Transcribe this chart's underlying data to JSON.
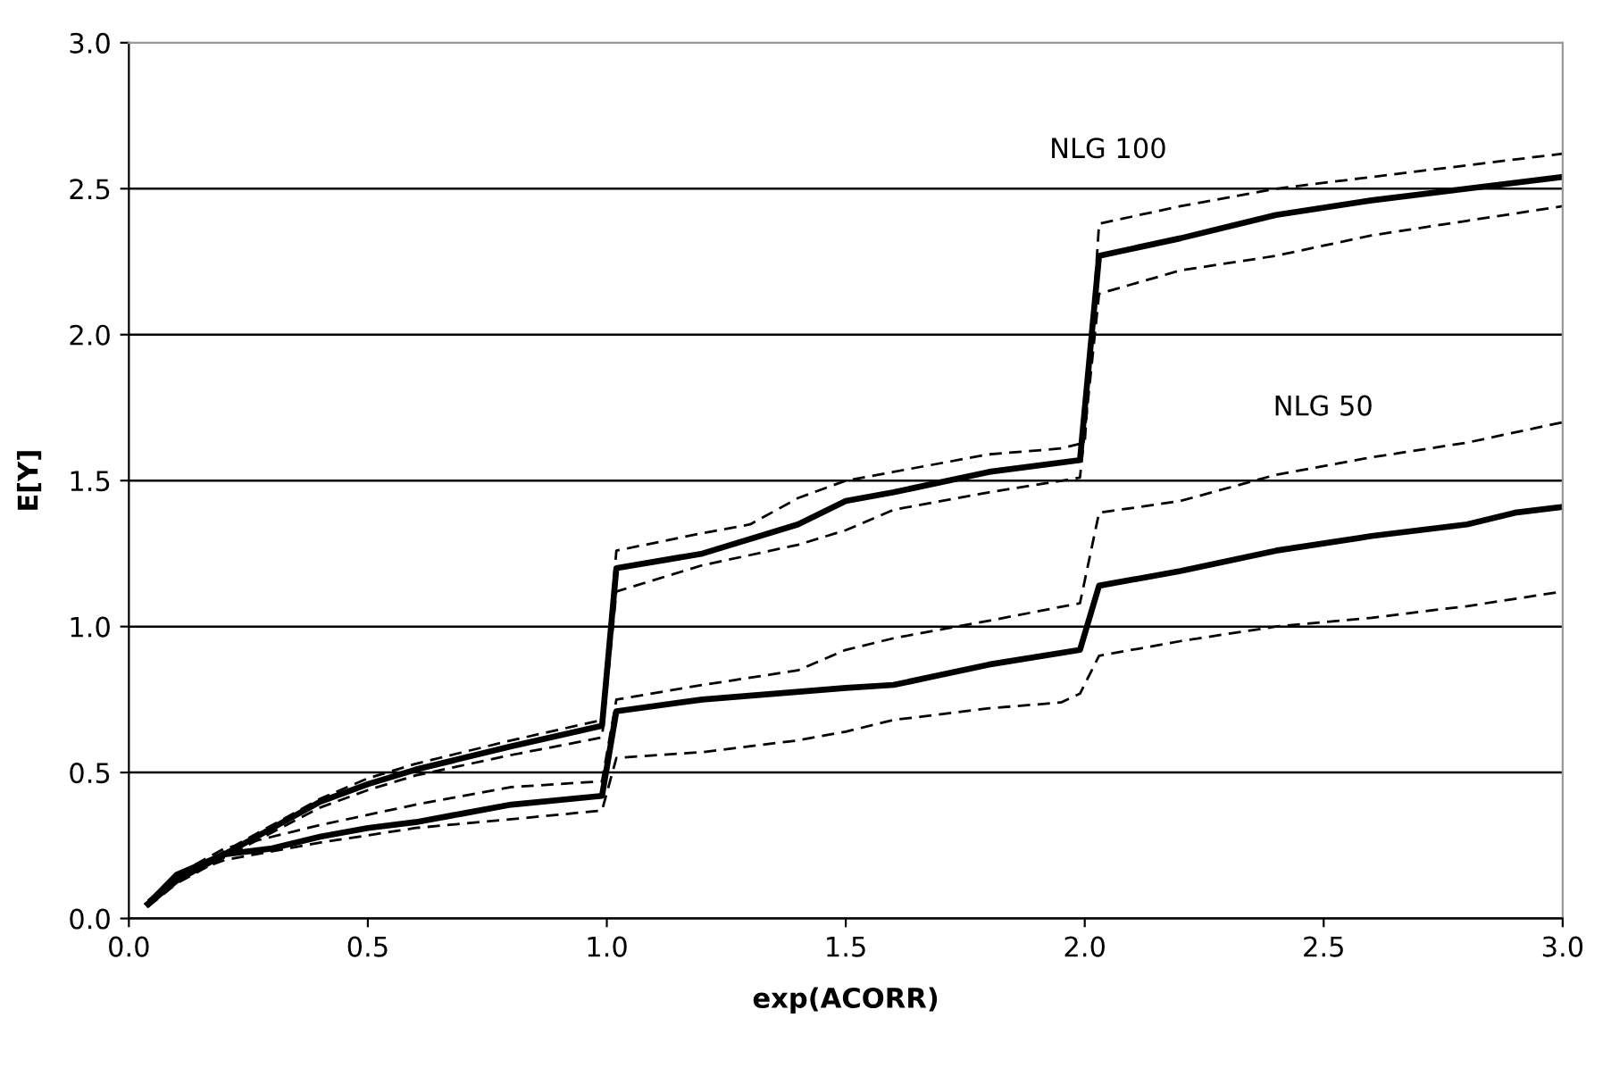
{
  "chart_data": {
    "type": "line",
    "xlabel": "exp(ACORR)",
    "ylabel": "E[Y]",
    "xlim": [
      0,
      3
    ],
    "ylim": [
      0,
      3
    ],
    "xticks": [
      {
        "value": 0,
        "label": "0.0"
      },
      {
        "value": 0.5,
        "label": "0.5"
      },
      {
        "value": 1,
        "label": "1.0"
      },
      {
        "value": 1.5,
        "label": "1.5"
      },
      {
        "value": 2,
        "label": "2.0"
      },
      {
        "value": 2.5,
        "label": "2.5"
      },
      {
        "value": 3,
        "label": "3.0"
      }
    ],
    "yticks": [
      {
        "value": 0,
        "label": "0.0"
      },
      {
        "value": 0.5,
        "label": "0.5"
      },
      {
        "value": 1,
        "label": "1.0"
      },
      {
        "value": 1.5,
        "label": "1.5"
      },
      {
        "value": 2,
        "label": "2.0"
      },
      {
        "value": 2.5,
        "label": "2.5"
      },
      {
        "value": 3,
        "label": "3.0"
      }
    ],
    "grid": "y",
    "marker": "none",
    "annotations": [
      "NLG 100",
      "NLG 50"
    ],
    "series": [
      {
        "color": "#000000",
        "line_style": "solid",
        "x": [
          0.04,
          0.1,
          0.2,
          0.4,
          0.5,
          0.6,
          0.8,
          0.99,
          1.02,
          1.2,
          1.4,
          1.5,
          1.6,
          1.8,
          1.99,
          2.03,
          2.2,
          2.4,
          2.6,
          2.8,
          3.0
        ],
        "values": [
          0.05,
          0.13,
          0.22,
          0.4,
          0.46,
          0.51,
          0.59,
          0.66,
          1.2,
          1.25,
          1.35,
          1.43,
          1.46,
          1.53,
          1.57,
          2.27,
          2.33,
          2.41,
          2.46,
          2.5,
          2.54
        ]
      },
      {
        "color": "#000000",
        "line_style": "dashed",
        "x": [
          0.04,
          0.1,
          0.2,
          0.4,
          0.5,
          0.6,
          0.8,
          0.99,
          1.02,
          1.2,
          1.3,
          1.4,
          1.5,
          1.6,
          1.8,
          1.95,
          2.0,
          2.03,
          2.2,
          2.4,
          2.6,
          2.8,
          3.0
        ],
        "values": [
          0.06,
          0.14,
          0.23,
          0.41,
          0.48,
          0.53,
          0.61,
          0.68,
          1.26,
          1.32,
          1.35,
          1.44,
          1.5,
          1.53,
          1.59,
          1.61,
          1.63,
          2.38,
          2.44,
          2.5,
          2.54,
          2.58,
          2.62
        ]
      },
      {
        "color": "#000000",
        "line_style": "dashed",
        "x": [
          0.04,
          0.1,
          0.2,
          0.4,
          0.5,
          0.6,
          0.8,
          0.99,
          1.02,
          1.1,
          1.2,
          1.4,
          1.5,
          1.6,
          1.8,
          1.99,
          2.03,
          2.2,
          2.4,
          2.6,
          2.8,
          3.0
        ],
        "values": [
          0.04,
          0.12,
          0.21,
          0.38,
          0.44,
          0.49,
          0.56,
          0.62,
          1.12,
          1.16,
          1.21,
          1.28,
          1.33,
          1.4,
          1.46,
          1.51,
          2.14,
          2.22,
          2.27,
          2.34,
          2.39,
          2.44
        ]
      },
      {
        "color": "#000000",
        "line_style": "solid",
        "x": [
          0.04,
          0.1,
          0.2,
          0.3,
          0.4,
          0.5,
          0.6,
          0.7,
          0.8,
          0.99,
          1.02,
          1.2,
          1.5,
          1.6,
          1.8,
          1.99,
          2.03,
          2.2,
          2.4,
          2.6,
          2.8,
          2.9,
          3.0
        ],
        "values": [
          0.05,
          0.15,
          0.22,
          0.24,
          0.28,
          0.31,
          0.33,
          0.36,
          0.39,
          0.42,
          0.71,
          0.75,
          0.79,
          0.8,
          0.87,
          0.92,
          1.14,
          1.19,
          1.26,
          1.31,
          1.35,
          1.39,
          1.41
        ]
      },
      {
        "color": "#000000",
        "line_style": "dashed",
        "x": [
          0.04,
          0.1,
          0.2,
          0.4,
          0.6,
          0.8,
          0.99,
          1.02,
          1.2,
          1.4,
          1.5,
          1.6,
          1.8,
          1.99,
          2.03,
          2.2,
          2.4,
          2.6,
          2.8,
          3.0
        ],
        "values": [
          0.06,
          0.15,
          0.24,
          0.32,
          0.39,
          0.45,
          0.47,
          0.75,
          0.8,
          0.85,
          0.92,
          0.96,
          1.02,
          1.08,
          1.39,
          1.43,
          1.52,
          1.58,
          1.63,
          1.7
        ]
      },
      {
        "color": "#000000",
        "line_style": "dashed",
        "x": [
          0.04,
          0.1,
          0.2,
          0.4,
          0.6,
          0.8,
          0.99,
          1.02,
          1.2,
          1.4,
          1.5,
          1.6,
          1.8,
          1.95,
          1.99,
          2.03,
          2.2,
          2.4,
          2.6,
          2.8,
          3.0
        ],
        "values": [
          0.04,
          0.14,
          0.2,
          0.26,
          0.31,
          0.34,
          0.37,
          0.55,
          0.57,
          0.61,
          0.64,
          0.68,
          0.72,
          0.74,
          0.77,
          0.9,
          0.95,
          1.0,
          1.03,
          1.07,
          1.12
        ]
      }
    ]
  }
}
